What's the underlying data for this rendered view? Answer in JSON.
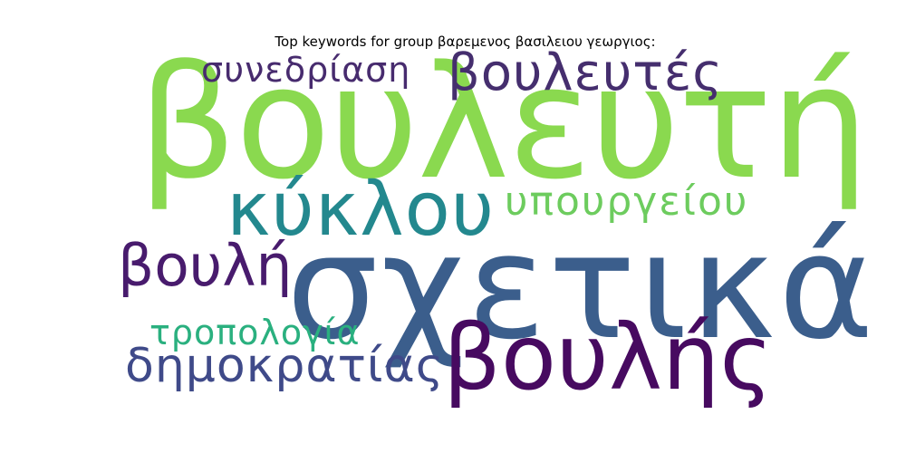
{
  "title": "Top keywords for group βαρεμενος βασιλειου γεωργιος:",
  "words": [
    {
      "text": "βουλευτή",
      "color": "#8ad94f"
    },
    {
      "text": "σχετικά",
      "color": "#3b5e8c"
    },
    {
      "text": "κύκλου",
      "color": "#23888e"
    },
    {
      "text": "βουλής",
      "color": "#470a60"
    },
    {
      "text": "βουλευτές",
      "color": "#452e6e"
    },
    {
      "text": "υπουργείου",
      "color": "#6dcc5e"
    },
    {
      "text": "βουλή",
      "color": "#481b6d"
    },
    {
      "text": "δημοκρατίας",
      "color": "#3f4a89"
    },
    {
      "text": "συνεδρίαση",
      "color": "#472b6e"
    },
    {
      "text": "τροπολογία",
      "color": "#2ab07f"
    }
  ]
}
